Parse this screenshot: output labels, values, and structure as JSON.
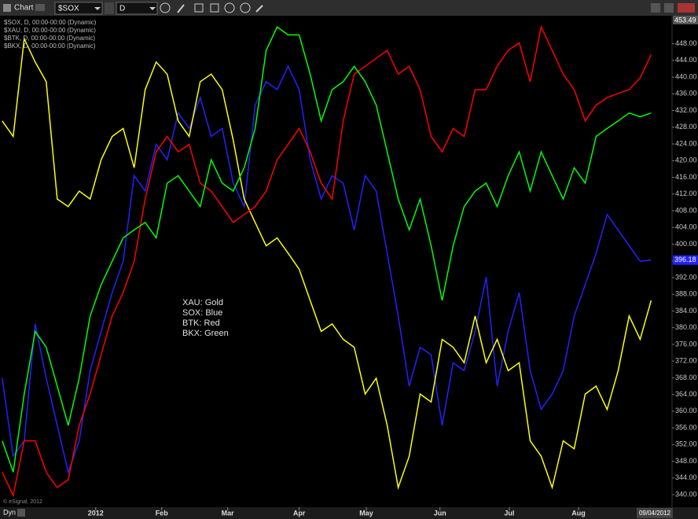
{
  "toolbar": {
    "title": "Chart",
    "symbol": "$SOX",
    "interval": "D"
  },
  "footer": {
    "mode": "Dyn",
    "date": "09/04/2012",
    "copyright": "© eSignal, 2012"
  },
  "chart_data": {
    "type": "line",
    "x": [
      0,
      1,
      2,
      3,
      4,
      5,
      6,
      7,
      8,
      9,
      10,
      11,
      12,
      13,
      14,
      15,
      16,
      17,
      18,
      19,
      20,
      21,
      22,
      23,
      24,
      25,
      26,
      27,
      28,
      29,
      30,
      31,
      32,
      33,
      34,
      35,
      36,
      37,
      38,
      39,
      40,
      41,
      42,
      43,
      44,
      45,
      46,
      47,
      48,
      49,
      50,
      51,
      52,
      53,
      54,
      55,
      56,
      57,
      58,
      59
    ],
    "xlim": [
      -0.2,
      60.9
    ],
    "xticks": [
      {
        "value": 8.5,
        "label": "2012"
      },
      {
        "value": 14.5,
        "label": "Feb"
      },
      {
        "value": 20.5,
        "label": "Mar"
      },
      {
        "value": 27,
        "label": "Apr"
      },
      {
        "value": 33.1,
        "label": "May"
      },
      {
        "value": 39.8,
        "label": "Jun"
      },
      {
        "value": 46.1,
        "label": "Jul"
      },
      {
        "value": 52.4,
        "label": "Aug"
      }
    ],
    "ylim": [
      337,
      454.7
    ],
    "yticks": [
      {
        "value": 340,
        "label": "340.00"
      },
      {
        "value": 344,
        "label": "344.00"
      },
      {
        "value": 348,
        "label": "348.00"
      },
      {
        "value": 352,
        "label": "352.00"
      },
      {
        "value": 356,
        "label": "356.00"
      },
      {
        "value": 360,
        "label": "360.00"
      },
      {
        "value": 364,
        "label": "364.00"
      },
      {
        "value": 368,
        "label": "368.00"
      },
      {
        "value": 372,
        "label": "372.00"
      },
      {
        "value": 376,
        "label": "376.00"
      },
      {
        "value": 380,
        "label": "380.00"
      },
      {
        "value": 384,
        "label": "384.00"
      },
      {
        "value": 388,
        "label": "388.00"
      },
      {
        "value": 392,
        "label": "392.00"
      },
      {
        "value": 396,
        "label": "396.00"
      },
      {
        "value": 400,
        "label": "400.00"
      },
      {
        "value": 404,
        "label": "404.00"
      },
      {
        "value": 408,
        "label": "408.00"
      },
      {
        "value": 412,
        "label": "412.00"
      },
      {
        "value": 416,
        "label": "416.00"
      },
      {
        "value": 420,
        "label": "420.00"
      },
      {
        "value": 424,
        "label": "424.00"
      },
      {
        "value": 428,
        "label": "428.00"
      },
      {
        "value": 432,
        "label": "432.00"
      },
      {
        "value": 436,
        "label": "436.00"
      },
      {
        "value": 440,
        "label": "440.00"
      },
      {
        "value": 444,
        "label": "444.00"
      },
      {
        "value": 448,
        "label": "448.00"
      }
    ],
    "top_price": 453.49,
    "grid": false,
    "annotations": [
      "XAU:  Gold",
      "SOX:  Blue",
      "BTK:  Red",
      "BKX:  Green"
    ],
    "series": [
      {
        "name": "$SOX, D, 00:00-00:00 (Dynamic)",
        "color": "#2222ff",
        "show_last": true,
        "values": [
          367.9,
          349.2,
          352.9,
          380.9,
          367.9,
          356.6,
          345.4,
          352.9,
          369.7,
          379.1,
          388.4,
          395.9,
          416.4,
          412.7,
          423.9,
          420.2,
          431.4,
          427.7,
          435.1,
          425.8,
          427.7,
          414.6,
          409,
          433.3,
          438.9,
          437,
          442.6,
          437,
          420.2,
          410.8,
          416.4,
          414.6,
          403.4,
          416.4,
          412.7,
          397.8,
          382.8,
          366,
          375.3,
          373.5,
          356.6,
          371.6,
          369.7,
          379.1,
          392.1,
          366,
          379.1,
          388.4,
          369.7,
          360.4,
          364.1,
          369.7,
          382.8,
          390.3,
          397.8,
          407.1,
          403.4,
          399.6,
          395.9,
          396.18
        ]
      },
      {
        "name": "$XAU, D, 00:00-00:00 (Dynamic)",
        "color": "#ffff00",
        "values": [
          429.5,
          425.8,
          449.2,
          443.6,
          438.9,
          410.8,
          409,
          412.7,
          410.8,
          420.2,
          425.8,
          427.7,
          418.3,
          437,
          443.6,
          440.7,
          429.5,
          425.8,
          438.9,
          440.7,
          437,
          424.9,
          410.8,
          405.2,
          399.6,
          401.5,
          397.8,
          394,
          386.5,
          379.1,
          380.9,
          377.2,
          375.3,
          364.1,
          367.9,
          356.6,
          341.7,
          349.2,
          364.1,
          362.2,
          377.2,
          375.3,
          371.6,
          382.8,
          371.6,
          377.2,
          369.7,
          371.6,
          352.9,
          349.2,
          341.7,
          352.9,
          351,
          364.1,
          366,
          360.4,
          369.7,
          382.8,
          377.2,
          386.5
        ]
      },
      {
        "name": "$BTK, D, 00:00-00:00 (Dynamic)",
        "color": "#ff0000",
        "values": [
          345.4,
          339.8,
          352.9,
          352.9,
          345.4,
          341.7,
          343.6,
          356.6,
          364.1,
          373.5,
          382.8,
          388.4,
          395.9,
          410.8,
          422.1,
          425.8,
          422.1,
          423.9,
          414.6,
          412.7,
          409,
          405.2,
          407.1,
          409,
          412.7,
          420.2,
          423.9,
          427.7,
          422.1,
          414.6,
          410.8,
          429.5,
          440.7,
          442.6,
          444.5,
          446.4,
          440.7,
          442.6,
          437,
          425.8,
          422.1,
          427.7,
          425.8,
          437,
          437,
          442.6,
          446.4,
          448.2,
          438.9,
          452,
          446.4,
          440.7,
          437,
          429.5,
          433.3,
          435.1,
          436.1,
          437,
          439.8,
          445.4
        ]
      },
      {
        "name": "$BKX, D, 00:00-00:00 (Dynamic)",
        "color": "#00ff00",
        "values": [
          352.9,
          345.4,
          364.1,
          379.1,
          375.3,
          366,
          356.6,
          367.9,
          382.8,
          390.3,
          395.9,
          401.5,
          403.4,
          405.2,
          401.5,
          414.6,
          416.4,
          412.7,
          409,
          420.2,
          414.6,
          412.7,
          418.3,
          427.7,
          446.4,
          452,
          450.1,
          450.1,
          440.7,
          429.5,
          437,
          438.9,
          442.6,
          438.9,
          433.3,
          422.1,
          410.8,
          403.4,
          410.8,
          399.6,
          386.5,
          399.6,
          409,
          412.7,
          414.6,
          409,
          416.4,
          422.1,
          412.7,
          422.1,
          416.4,
          410.8,
          418.3,
          414.6,
          425.8,
          427.7,
          429.5,
          431.4,
          430.5,
          431.4
        ]
      }
    ]
  }
}
